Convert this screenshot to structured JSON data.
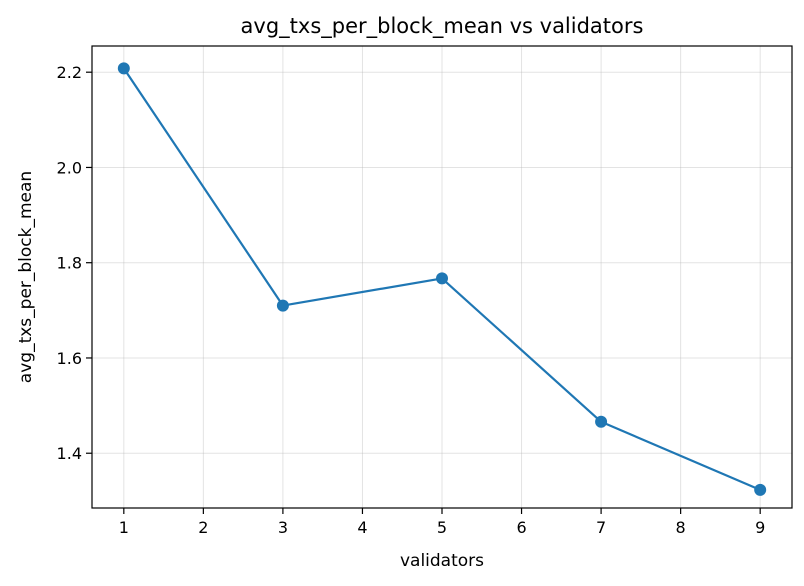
{
  "chart_data": {
    "type": "line",
    "title": "avg_txs_per_block_mean vs validators",
    "xlabel": "validators",
    "ylabel": "avg_txs_per_block_mean",
    "x": [
      1,
      3,
      5,
      7,
      9
    ],
    "series": [
      {
        "values": [
          2.208,
          1.71,
          1.767,
          1.466,
          1.323
        ],
        "color": "#1f77b4"
      }
    ],
    "xlim": [
      0.6,
      9.4
    ],
    "ylim": [
      1.285,
      2.255
    ],
    "xticks": [
      1,
      2,
      3,
      4,
      5,
      6,
      7,
      8,
      9
    ],
    "yticks": [
      1.4,
      1.6,
      1.8,
      2.0,
      2.2
    ],
    "xtick_labels": [
      "1",
      "2",
      "3",
      "4",
      "5",
      "6",
      "7",
      "8",
      "9"
    ],
    "ytick_labels": [
      "1.4",
      "1.6",
      "1.8",
      "2.0",
      "2.2"
    ],
    "grid": true,
    "marker": "circle"
  }
}
